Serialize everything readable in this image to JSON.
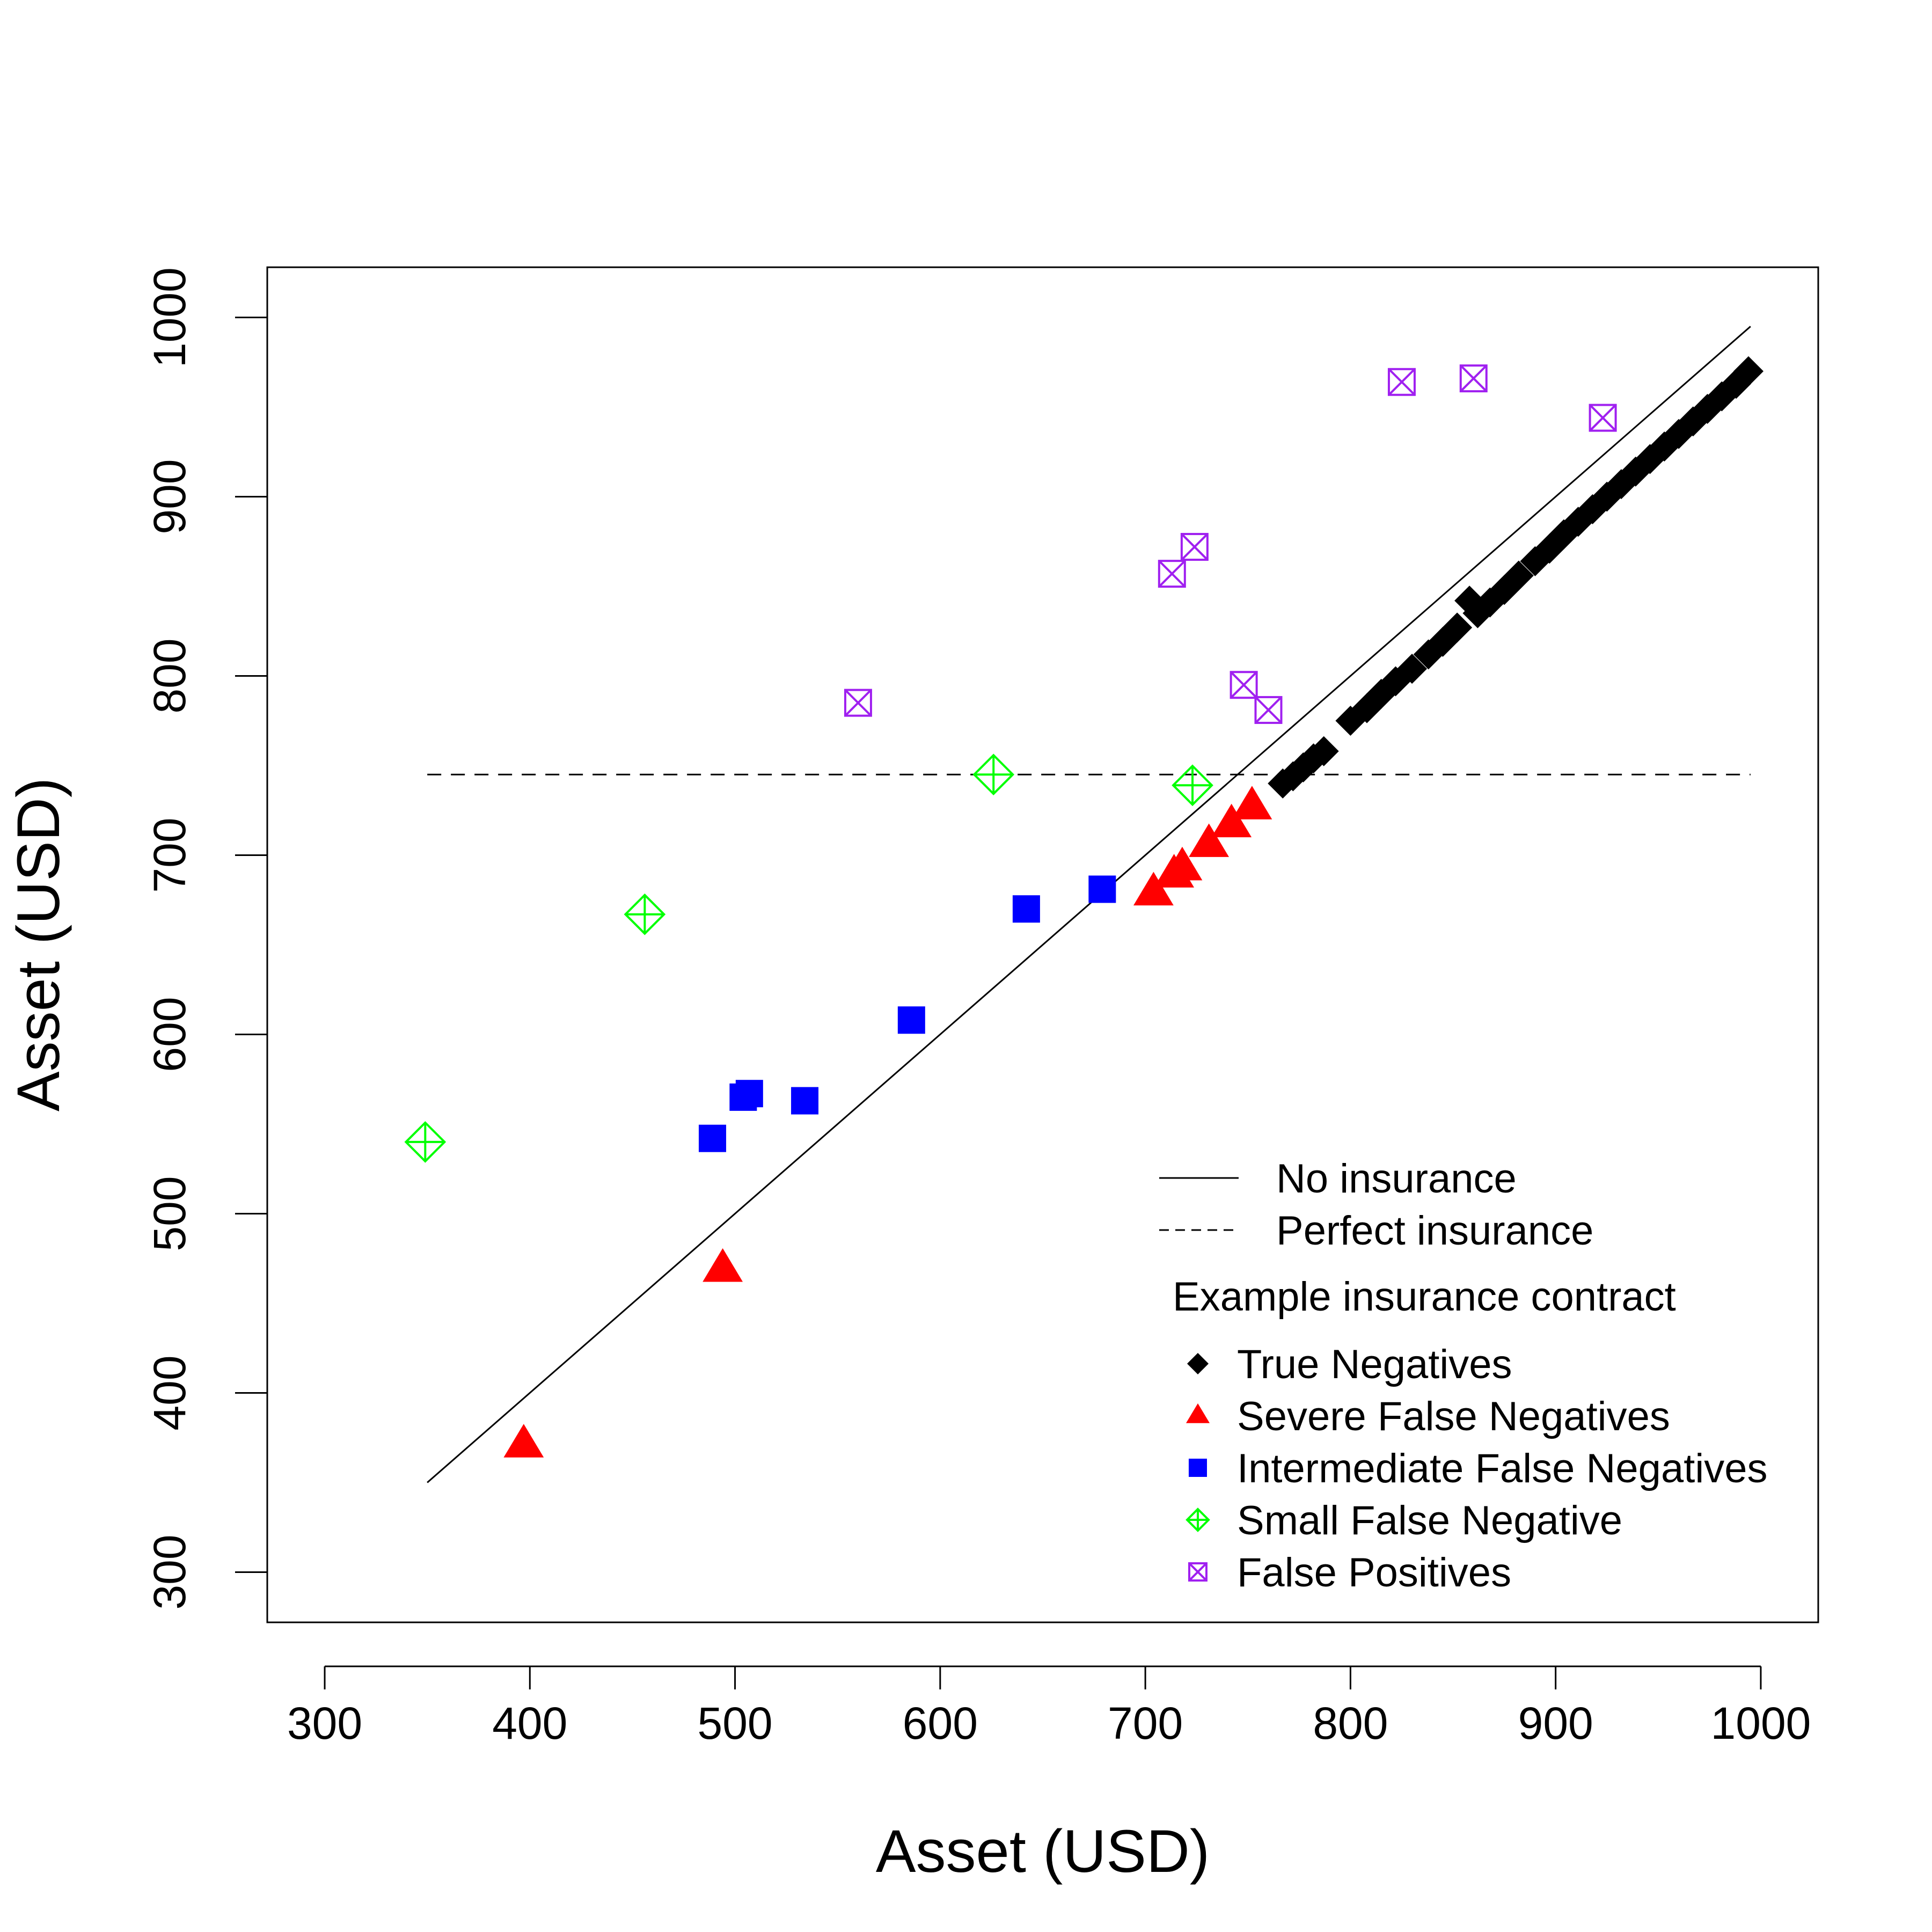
{
  "chart_data": {
    "type": "scatter",
    "xlabel": "Asset (USD)",
    "ylabel": "Asset (USD)",
    "xlim": [
      272,
      1028
    ],
    "ylim": [
      272,
      1028
    ],
    "xticks": [
      300,
      400,
      500,
      600,
      700,
      800,
      900,
      1000
    ],
    "yticks": [
      300,
      400,
      500,
      600,
      700,
      800,
      900,
      1000
    ],
    "grid": false,
    "legend_position": "bottom-right",
    "lines": [
      {
        "name": "No insurance",
        "style": "solid",
        "color": "#000000",
        "points": [
          [
            350,
            350
          ],
          [
            995,
            995
          ]
        ]
      },
      {
        "name": "Perfect insurance",
        "style": "dashed",
        "color": "#000000",
        "points": [
          [
            350,
            745
          ],
          [
            995,
            745
          ]
        ]
      }
    ],
    "legend_title": "Example insurance contract",
    "series": [
      {
        "name": "True Negatives",
        "marker": "diamond",
        "color": "#000000",
        "points": [
          [
            767,
            740
          ],
          [
            772,
            744
          ],
          [
            777,
            749
          ],
          [
            782,
            754
          ],
          [
            787,
            758
          ],
          [
            800,
            775
          ],
          [
            808,
            782
          ],
          [
            815,
            790
          ],
          [
            822,
            797
          ],
          [
            830,
            804
          ],
          [
            838,
            812
          ],
          [
            845,
            819
          ],
          [
            852,
            827
          ],
          [
            858,
            842
          ],
          [
            862,
            835
          ],
          [
            868,
            841
          ],
          [
            875,
            848
          ],
          [
            882,
            856
          ],
          [
            890,
            864
          ],
          [
            897,
            871
          ],
          [
            904,
            879
          ],
          [
            911,
            886
          ],
          [
            918,
            893
          ],
          [
            925,
            900
          ],
          [
            932,
            907
          ],
          [
            939,
            914
          ],
          [
            946,
            921
          ],
          [
            953,
            928
          ],
          [
            960,
            935
          ],
          [
            967,
            942
          ],
          [
            974,
            949
          ],
          [
            981,
            956
          ],
          [
            988,
            963
          ],
          [
            994,
            970
          ]
        ]
      },
      {
        "name": "Severe False Negatives",
        "marker": "triangle",
        "color": "#ff0000",
        "points": [
          [
            397,
            371
          ],
          [
            494,
            469
          ],
          [
            704,
            679
          ],
          [
            714,
            689
          ],
          [
            718,
            693
          ],
          [
            731,
            706
          ],
          [
            742,
            717
          ],
          [
            752,
            727
          ]
        ]
      },
      {
        "name": "Intermediate False Negatives",
        "marker": "square",
        "color": "#0000ff",
        "points": [
          [
            489,
            542
          ],
          [
            504,
            565
          ],
          [
            507,
            567
          ],
          [
            534,
            563
          ],
          [
            586,
            608
          ],
          [
            642,
            670
          ],
          [
            679,
            681
          ]
        ]
      },
      {
        "name": "Small False Negative",
        "marker": "diamond-plus",
        "color": "#00ff00",
        "points": [
          [
            349,
            540
          ],
          [
            456,
            667
          ],
          [
            626,
            745
          ],
          [
            723,
            739
          ]
        ]
      },
      {
        "name": "False Positives",
        "marker": "square-x",
        "color": "#a020f0",
        "points": [
          [
            560,
            785
          ],
          [
            713,
            857
          ],
          [
            724,
            872
          ],
          [
            748,
            795
          ],
          [
            760,
            781
          ],
          [
            825,
            964
          ],
          [
            860,
            966
          ],
          [
            923,
            944
          ]
        ]
      }
    ]
  }
}
